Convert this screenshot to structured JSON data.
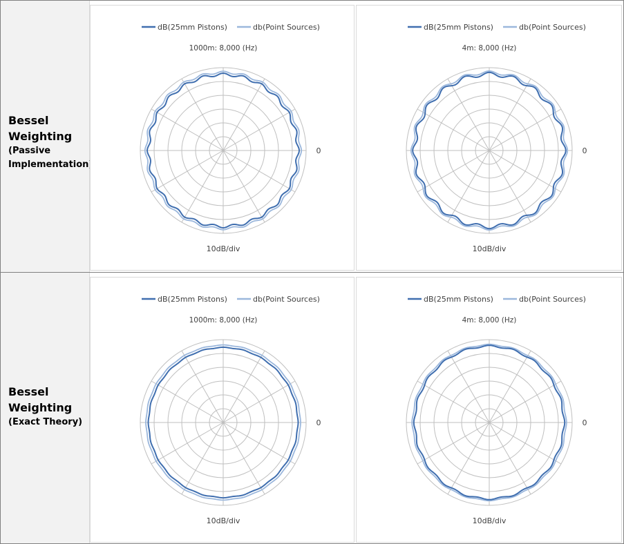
{
  "rows": [
    {
      "title_line1": "Bessel",
      "title_line2": "Weighting",
      "subtitle_line1": "(Passive",
      "subtitle_line2": "Implementation)"
    },
    {
      "title_line1": "Bessel",
      "title_line2": "Weighting",
      "subtitle_line1": "(Exact Theory)",
      "subtitle_line2": ""
    }
  ],
  "legend": {
    "series1": "dB(25mm Pistons)",
    "series2": "db(Point Sources)"
  },
  "colors": {
    "series1": "#3f6eaf",
    "series2": "#9bb7dc",
    "grid": "#bfbfbf",
    "label_bg": "#f2f2f2"
  },
  "chart_data": [
    {
      "type": "polar",
      "title": "1000m: 8,000 (Hz)",
      "scale_label": "10dB/div",
      "reference_label": "0",
      "rings": 6,
      "spokes": 12,
      "rmax_db": 0,
      "rmin_db": -60,
      "series": [
        {
          "name": "dB(25mm Pistons)",
          "base_db": -6.0,
          "ripple_db": 1.0,
          "ripple_cycles": 24,
          "side_bulge_db": 1.0
        },
        {
          "name": "db(Point Sources)",
          "base_db": -4.2,
          "ripple_db": 0.8,
          "ripple_cycles": 24,
          "side_bulge_db": 0.8
        }
      ]
    },
    {
      "type": "polar",
      "title": "4m: 8,000 (Hz)",
      "scale_label": "10dB/div",
      "reference_label": "0",
      "rings": 6,
      "spokes": 12,
      "rmax_db": 0,
      "rmin_db": -60,
      "series": [
        {
          "name": "dB(25mm Pistons)",
          "base_db": -6.0,
          "ripple_db": 1.4,
          "ripple_cycles": 20,
          "side_bulge_db": 1.2
        },
        {
          "name": "db(Point Sources)",
          "base_db": -4.5,
          "ripple_db": 1.1,
          "ripple_cycles": 20,
          "side_bulge_db": 1.0
        }
      ]
    },
    {
      "type": "polar",
      "title": "1000m: 8,000 (Hz)",
      "scale_label": "10dB/div",
      "reference_label": "0",
      "rings": 6,
      "spokes": 12,
      "rmax_db": 0,
      "rmin_db": -60,
      "series": [
        {
          "name": "dB(25mm Pistons)",
          "base_db": -6.0,
          "ripple_db": 0.25,
          "ripple_cycles": 24,
          "side_bulge_db": 0.3
        },
        {
          "name": "db(Point Sources)",
          "base_db": -4.2,
          "ripple_db": 0.2,
          "ripple_cycles": 24,
          "side_bulge_db": 0.2
        }
      ]
    },
    {
      "type": "polar",
      "title": "4m: 8,000 (Hz)",
      "scale_label": "10dB/div",
      "reference_label": "0",
      "rings": 6,
      "spokes": 12,
      "rmax_db": 0,
      "rmin_db": -60,
      "series": [
        {
          "name": "dB(25mm Pistons)",
          "base_db": -6.0,
          "ripple_db": 0.6,
          "ripple_cycles": 20,
          "side_bulge_db": 1.3
        },
        {
          "name": "db(Point Sources)",
          "base_db": -4.5,
          "ripple_db": 0.4,
          "ripple_cycles": 20,
          "side_bulge_db": 0.8
        }
      ]
    }
  ]
}
